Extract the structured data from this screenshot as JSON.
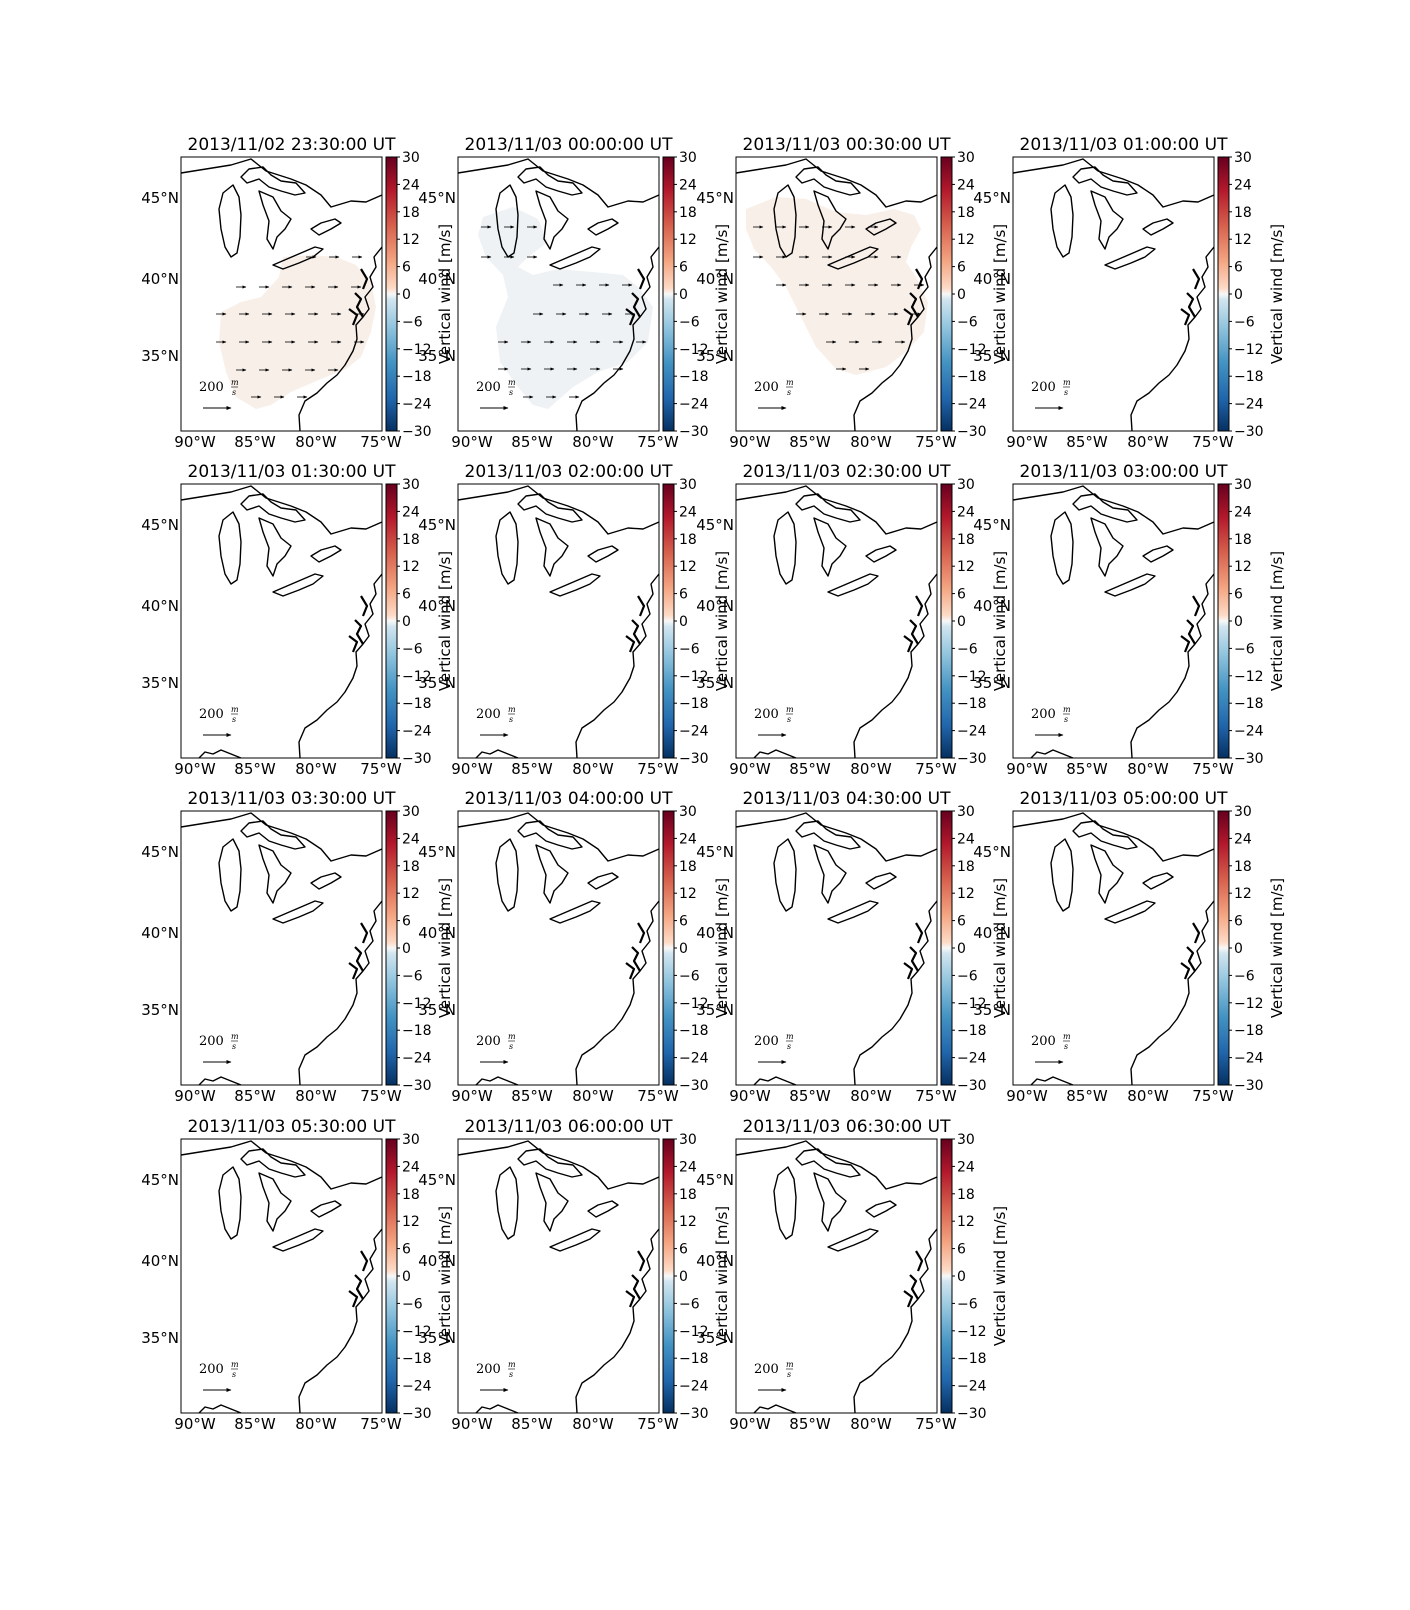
{
  "figure": {
    "colorbar_label": "Vertical wind [m/s]",
    "colorbar_ticks": [
      "30",
      "24",
      "18",
      "12",
      "6",
      "0",
      "−6",
      "−12",
      "−18",
      "−24",
      "−30"
    ],
    "lon_ticks": [
      "90°W",
      "85°W",
      "80°W",
      "75°W"
    ],
    "lat_ticks": [
      "45°N",
      "40°N",
      "35°N"
    ],
    "scale_arrow": {
      "value": "200",
      "unit_num": "m",
      "unit_den": "s"
    },
    "colormap": {
      "low": "#053061",
      "mid": "#f7f7f7",
      "high": "#67001f"
    }
  },
  "panels": [
    {
      "title": "2013/11/02 23:30:00 UT",
      "field": "positive"
    },
    {
      "title": "2013/11/03 00:00:00 UT",
      "field": "negative"
    },
    {
      "title": "2013/11/03 00:30:00 UT",
      "field": "positive"
    },
    {
      "title": "2013/11/03 01:00:00 UT",
      "field": "none"
    },
    {
      "title": "2013/11/03 01:30:00 UT",
      "field": "none"
    },
    {
      "title": "2013/11/03 02:00:00 UT",
      "field": "none"
    },
    {
      "title": "2013/11/03 02:30:00 UT",
      "field": "none"
    },
    {
      "title": "2013/11/03 03:00:00 UT",
      "field": "none"
    },
    {
      "title": "2013/11/03 03:30:00 UT",
      "field": "none"
    },
    {
      "title": "2013/11/03 04:00:00 UT",
      "field": "none"
    },
    {
      "title": "2013/11/03 04:30:00 UT",
      "field": "none"
    },
    {
      "title": "2013/11/03 05:00:00 UT",
      "field": "none"
    },
    {
      "title": "2013/11/03 05:30:00 UT",
      "field": "none"
    },
    {
      "title": "2013/11/03 06:00:00 UT",
      "field": "none"
    },
    {
      "title": "2013/11/03 06:30:00 UT",
      "field": "none"
    }
  ]
}
